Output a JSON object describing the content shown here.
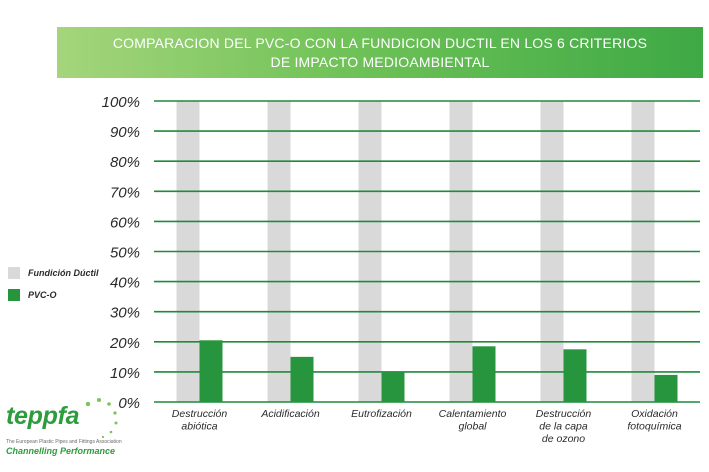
{
  "chart_data": {
    "type": "bar",
    "title_lines": [
      "COMPARACION DEL PVC-O CON LA FUNDICION DUCTIL EN LOS 6 CRITERIOS",
      "DE IMPACTO MEDIOAMBIENTAL"
    ],
    "categories": [
      [
        "Destrucción",
        "abiótica"
      ],
      [
        "Acidificación"
      ],
      [
        "Eutrofización"
      ],
      [
        "Calentamiento",
        "global"
      ],
      [
        "Destrucción",
        "de la capa",
        "de ozono"
      ],
      [
        "Oxidación",
        "fotoquímica"
      ]
    ],
    "series": [
      {
        "name": "Fundición Dúctil",
        "color": "#d9d9d9",
        "values": [
          100,
          100,
          100,
          100,
          100,
          100
        ]
      },
      {
        "name": "PVC-O",
        "color": "#27953d",
        "values": [
          20.5,
          15,
          10,
          18.5,
          17.5,
          9
        ]
      }
    ],
    "yticks": [
      "0%",
      "10%",
      "20%",
      "30%",
      "40%",
      "50%",
      "60%",
      "70%",
      "80%",
      "90%",
      "100%"
    ],
    "ylim": [
      0,
      100
    ],
    "grid": true,
    "grid_color": "#1f8a3a",
    "legend_position": "left"
  },
  "logo": {
    "word": "teppfa",
    "subtitle": "The European Plastic Pipes and Fittings Association",
    "tagline": "Channelling Performance"
  }
}
